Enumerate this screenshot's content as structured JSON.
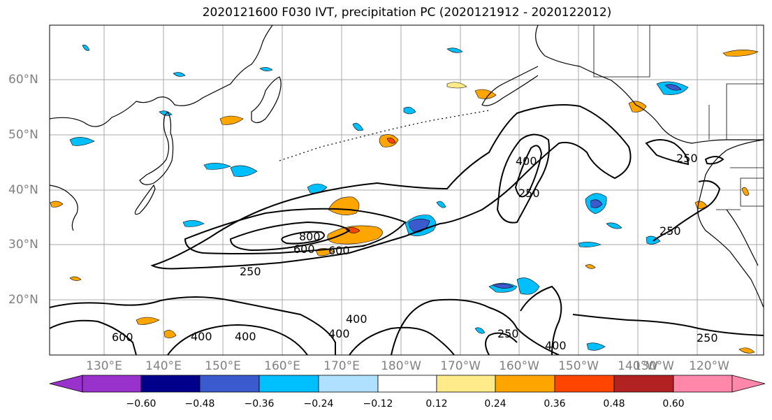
{
  "title": "2020121600 F030 IVT, precipitation PC (2020121912 - 2020122012)",
  "lat_labels": [
    "60°N",
    "50°N",
    "40°N",
    "30°N",
    "20°N"
  ],
  "lon_labels": [
    "130°E",
    "140°E",
    "150°E",
    "160°E",
    "170°E",
    "180°W",
    "170°W",
    "160°W",
    "150°W",
    "140°W",
    "130°W",
    "120°W"
  ],
  "contour_levels": [
    "250",
    "400",
    "600",
    "800"
  ],
  "contour_labels_shown": [
    "250",
    "400",
    "600",
    "800",
    "600",
    "400",
    "250",
    "400",
    "600",
    "400",
    "400",
    "400",
    "400",
    "250",
    "400",
    "250",
    "250",
    "250",
    "250",
    "400",
    "600"
  ],
  "colorbar": {
    "ticks": [
      "−0.60",
      "−0.48",
      "−0.36",
      "−0.24",
      "−0.12",
      "0.12",
      "0.24",
      "0.36",
      "0.48",
      "0.60"
    ],
    "colors": [
      "#9932cc",
      "#00008b",
      "#3a5acd",
      "#00bfff",
      "#b0e0ff",
      "#ffffff",
      "#ffeb8a",
      "#ffa500",
      "#ff4500",
      "#b22222",
      "#ff88aa"
    ]
  },
  "colors": {
    "contour": "#000000",
    "grid": "#999999",
    "coast": "#000000"
  }
}
